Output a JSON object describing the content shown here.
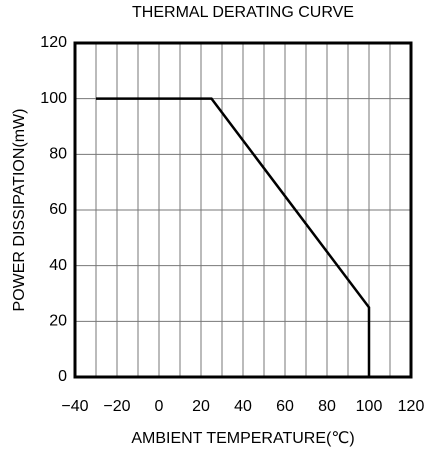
{
  "chart_data": {
    "type": "line",
    "title": "THERMAL DERATING CURVE",
    "x_label": "AMBIENT TEMPERATURE(℃)",
    "y_label": "POWER DISSIPATION(mW)",
    "series": [
      {
        "x": [
          -30,
          25,
          100,
          100
        ],
        "values": [
          100,
          100,
          25,
          0
        ],
        "color": "#000000"
      }
    ],
    "xlim": [
      -40,
      120
    ],
    "xticks": [
      {
        "value": -40,
        "label": "−40"
      },
      {
        "value": -20,
        "label": "−20"
      },
      0,
      20,
      40,
      60,
      80,
      100,
      120
    ],
    "ylim": [
      0,
      120
    ],
    "yticks": [
      0,
      20,
      40,
      60,
      80,
      100,
      120
    ],
    "grid": true
  }
}
